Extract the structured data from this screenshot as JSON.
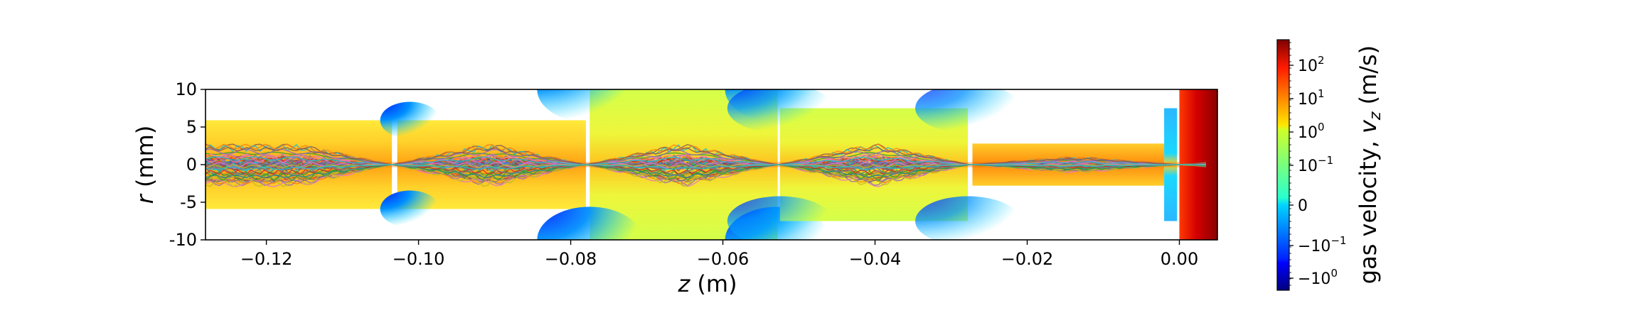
{
  "chart_data": {
    "type": "heatmap",
    "xlabel": "z (m)",
    "ylabel": "r (mm)",
    "xlim": [
      -0.128,
      0.005
    ],
    "ylim": [
      -10,
      10
    ],
    "x_ticks": [
      {
        "value": -0.12,
        "label": "−0.12"
      },
      {
        "value": -0.1,
        "label": "−0.10"
      },
      {
        "value": -0.08,
        "label": "−0.08"
      },
      {
        "value": -0.06,
        "label": "−0.06"
      },
      {
        "value": -0.04,
        "label": "−0.04"
      },
      {
        "value": -0.02,
        "label": "−0.02"
      },
      {
        "value": 0.0,
        "label": "0.00"
      }
    ],
    "y_ticks": [
      {
        "value": 10,
        "label": "10"
      },
      {
        "value": 5,
        "label": "5"
      },
      {
        "value": 0,
        "label": "0"
      },
      {
        "value": -5,
        "label": "-5"
      },
      {
        "value": -10,
        "label": "-10"
      }
    ],
    "grid": false,
    "colorbar": {
      "label": "gas velocity, v_z (m/s)",
      "label_prefix": "gas velocity, ",
      "label_var": "v",
      "label_sub": "z",
      "label_unit": " (m/s)",
      "scale": "symlog",
      "colormap": "jet",
      "ticks": [
        {
          "value": "1e2",
          "base": "10",
          "exp": "2"
        },
        {
          "value": "1e1",
          "base": "10",
          "exp": "1"
        },
        {
          "value": "1e0",
          "base": "10",
          "exp": "0"
        },
        {
          "value": "1e-1",
          "base": "10",
          "exp": "−1"
        },
        {
          "value": "0",
          "base": "0",
          "exp": ""
        },
        {
          "value": "-1e-1",
          "base": "−10",
          "exp": "−1"
        },
        {
          "value": "-1e0",
          "base": "−10",
          "exp": "0"
        }
      ]
    },
    "regions": [
      {
        "name": "chamber-1",
        "z": [
          -0.128,
          -0.1035
        ],
        "r": [
          -5.9,
          5.9
        ],
        "level": "moderate-positive"
      },
      {
        "name": "chamber-2",
        "z": [
          -0.1028,
          -0.078
        ],
        "r": [
          -5.9,
          5.9
        ],
        "level": "moderate-positive"
      },
      {
        "name": "chamber-3",
        "z": [
          -0.0775,
          -0.0528
        ],
        "r": [
          -10,
          10
        ],
        "level": "moderate-positive"
      },
      {
        "name": "chamber-4",
        "z": [
          -0.0525,
          -0.0278
        ],
        "r": [
          -7.5,
          7.5
        ],
        "level": "moderate-positive"
      },
      {
        "name": "chamber-5",
        "z": [
          -0.0272,
          -0.002
        ],
        "r": [
          -2.8,
          2.8
        ],
        "level": "positive"
      },
      {
        "name": "small-chamber",
        "z": [
          -0.002,
          -0.0003
        ],
        "r": [
          -7.5,
          7.5
        ],
        "level": "near-zero"
      },
      {
        "name": "exit-region",
        "z": [
          0.0,
          0.005
        ],
        "r": [
          -10,
          10
        ],
        "level": "high-positive"
      }
    ],
    "trajectories": {
      "description": "particle trajectories",
      "colors": [
        "#1f77b4",
        "#ff7f0e",
        "#2ca02c",
        "#d62728",
        "#9467bd",
        "#8c564b",
        "#e377c2",
        "#7f7f7f",
        "#bcbd22",
        "#17becf"
      ]
    }
  }
}
